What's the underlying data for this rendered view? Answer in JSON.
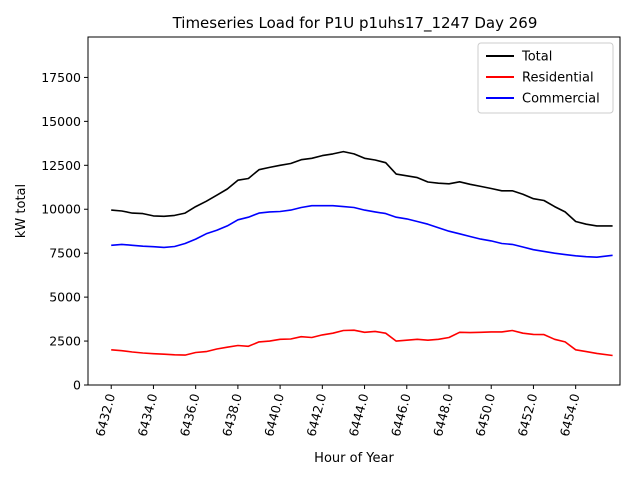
{
  "chart_data": {
    "type": "line",
    "title": "Timeseries Load for P1U p1uhs17_1247  Day 269",
    "xlabel": "Hour of Year",
    "ylabel": "kW total",
    "xlim": [
      6430.9,
      6456.1
    ],
    "ylim": [
      0,
      19800
    ],
    "xticks": [
      6432,
      6434,
      6436,
      6438,
      6440,
      6442,
      6444,
      6446,
      6448,
      6450,
      6452,
      6454
    ],
    "xtick_labels": [
      "6432.0",
      "6434.0",
      "6436.0",
      "6438.0",
      "6440.0",
      "6442.0",
      "6444.0",
      "6446.0",
      "6448.0",
      "6450.0",
      "6452.0",
      "6454.0"
    ],
    "yticks": [
      0,
      2500,
      5000,
      7500,
      10000,
      12500,
      15000,
      17500
    ],
    "ytick_labels": [
      "0",
      "2500",
      "5000",
      "7500",
      "10000",
      "12500",
      "15000",
      "17500"
    ],
    "legend_position": "upper right",
    "x": [
      6432.0,
      6432.5,
      6433.0,
      6433.5,
      6434.0,
      6434.5,
      6435.0,
      6435.5,
      6436.0,
      6436.5,
      6437.0,
      6437.5,
      6438.0,
      6438.5,
      6439.0,
      6439.5,
      6440.0,
      6440.5,
      6441.0,
      6441.5,
      6442.0,
      6442.5,
      6443.0,
      6443.5,
      6444.0,
      6444.5,
      6445.0,
      6445.5,
      6446.0,
      6446.5,
      6447.0,
      6447.5,
      6448.0,
      6448.5,
      6449.0,
      6449.5,
      6450.0,
      6450.5,
      6451.0,
      6451.5,
      6452.0,
      6452.5,
      6453.0,
      6453.5,
      6454.0,
      6454.5,
      6455.0,
      6455.75
    ],
    "series": [
      {
        "name": "Total",
        "color": "#000000",
        "values": [
          9950,
          9900,
          9780,
          9750,
          9620,
          9600,
          9650,
          9780,
          10150,
          10450,
          10800,
          11150,
          11650,
          11750,
          12250,
          12380,
          12500,
          12600,
          12820,
          12900,
          13050,
          13150,
          13280,
          13150,
          12900,
          12800,
          12650,
          12000,
          11900,
          11800,
          11550,
          11480,
          11450,
          11560,
          11420,
          11300,
          11180,
          11050,
          11050,
          10850,
          10600,
          10500,
          10150,
          9850,
          9300,
          9150,
          9050,
          9050
        ]
      },
      {
        "name": "Residential",
        "color": "#ff0000",
        "values": [
          2000,
          1950,
          1880,
          1820,
          1780,
          1750,
          1720,
          1700,
          1850,
          1900,
          2050,
          2150,
          2250,
          2200,
          2450,
          2500,
          2600,
          2620,
          2750,
          2700,
          2850,
          2950,
          3100,
          3120,
          3000,
          3050,
          2950,
          2500,
          2550,
          2600,
          2550,
          2600,
          2700,
          3000,
          2980,
          3000,
          3020,
          3020,
          3100,
          2950,
          2880,
          2870,
          2600,
          2450,
          2000,
          1900,
          1800,
          1680
        ]
      },
      {
        "name": "Commercial",
        "color": "#0000ff",
        "values": [
          7950,
          8000,
          7950,
          7900,
          7870,
          7830,
          7880,
          8050,
          8300,
          8600,
          8800,
          9050,
          9400,
          9550,
          9780,
          9850,
          9870,
          9950,
          10100,
          10200,
          10200,
          10200,
          10150,
          10100,
          9950,
          9850,
          9750,
          9550,
          9450,
          9300,
          9150,
          8950,
          8750,
          8600,
          8450,
          8300,
          8200,
          8050,
          8000,
          7850,
          7700,
          7600,
          7500,
          7420,
          7350,
          7300,
          7270,
          7380
        ]
      }
    ]
  }
}
